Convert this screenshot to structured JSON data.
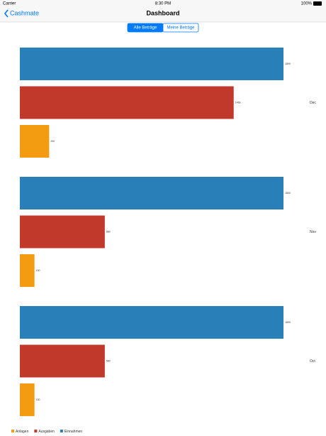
{
  "status_bar": {
    "carrier": "Carrier",
    "time": "8:30 PM",
    "battery": "100%"
  },
  "nav": {
    "back": "Cashmate",
    "title": "Dashboard"
  },
  "segmented": {
    "options": [
      "Alle Beträge",
      "Meine Beträge"
    ],
    "selected": 0
  },
  "chart_data": {
    "type": "bar",
    "orientation": "horizontal",
    "categories": [
      "Dec",
      "Nov",
      "Oct"
    ],
    "series": [
      {
        "name": "Anlagen",
        "color": "#f39c12",
        "values": [
          200,
          100,
          100
        ]
      },
      {
        "name": "Ausgaben",
        "color": "#c0392b",
        "values": [
          1460,
          580,
          580
        ]
      },
      {
        "name": "Einnahmen",
        "color": "#2980b9",
        "values": [
          1800,
          1800,
          1800
        ]
      }
    ],
    "legend": "bottom-left"
  }
}
